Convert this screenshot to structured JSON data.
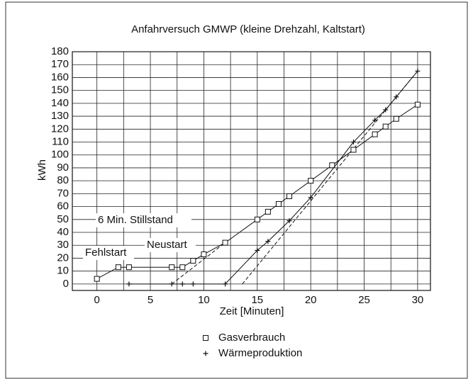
{
  "chart_data": {
    "type": "line",
    "title": "Anfahrversuch GMWP (kleine Drehzahl, Kaltstart)",
    "xlabel": "Zeit [Minuten]",
    "ylabel": "kWh",
    "xlim": [
      -2.3,
      31.2
    ],
    "ylim": [
      -5,
      180
    ],
    "xticks": [
      0,
      5,
      10,
      15,
      20,
      25,
      30
    ],
    "xminorticks": [
      2.5,
      7.5,
      12.5,
      17.5,
      22.5,
      27.5
    ],
    "yticks": [
      0,
      10,
      20,
      30,
      40,
      50,
      60,
      70,
      80,
      90,
      100,
      110,
      120,
      130,
      140,
      150,
      160,
      170,
      180
    ],
    "grid": true,
    "series": [
      {
        "name": "Gasverbrauch",
        "marker": "square",
        "color": "#111",
        "x": [
          0,
          2,
          3,
          7,
          8,
          9,
          10,
          12,
          15,
          16,
          17,
          18,
          20,
          22,
          24,
          26,
          27,
          28,
          30
        ],
        "values": [
          4,
          13,
          13,
          13,
          13,
          18,
          23,
          32,
          50,
          56,
          62,
          68,
          80,
          92,
          104,
          116,
          122,
          128,
          139
        ]
      },
      {
        "name": "Wärmeproduktion",
        "marker": "plus",
        "color": "#111",
        "x": [
          3,
          7,
          8,
          9,
          12,
          15,
          16,
          18,
          20,
          24,
          26,
          27,
          28,
          30
        ],
        "values": [
          0,
          0,
          0,
          0,
          0,
          26,
          33,
          49,
          67,
          110,
          127,
          135,
          145,
          165
        ]
      }
    ],
    "dashed_lines": [
      {
        "x": [
          7,
          12
        ],
        "values": [
          0,
          32
        ]
      },
      {
        "x": [
          13.6,
          30
        ],
        "values": [
          0,
          165
        ]
      }
    ],
    "annotations": [
      "6 Min. Stillstand",
      "Neustart",
      "Fehlstart"
    ]
  }
}
